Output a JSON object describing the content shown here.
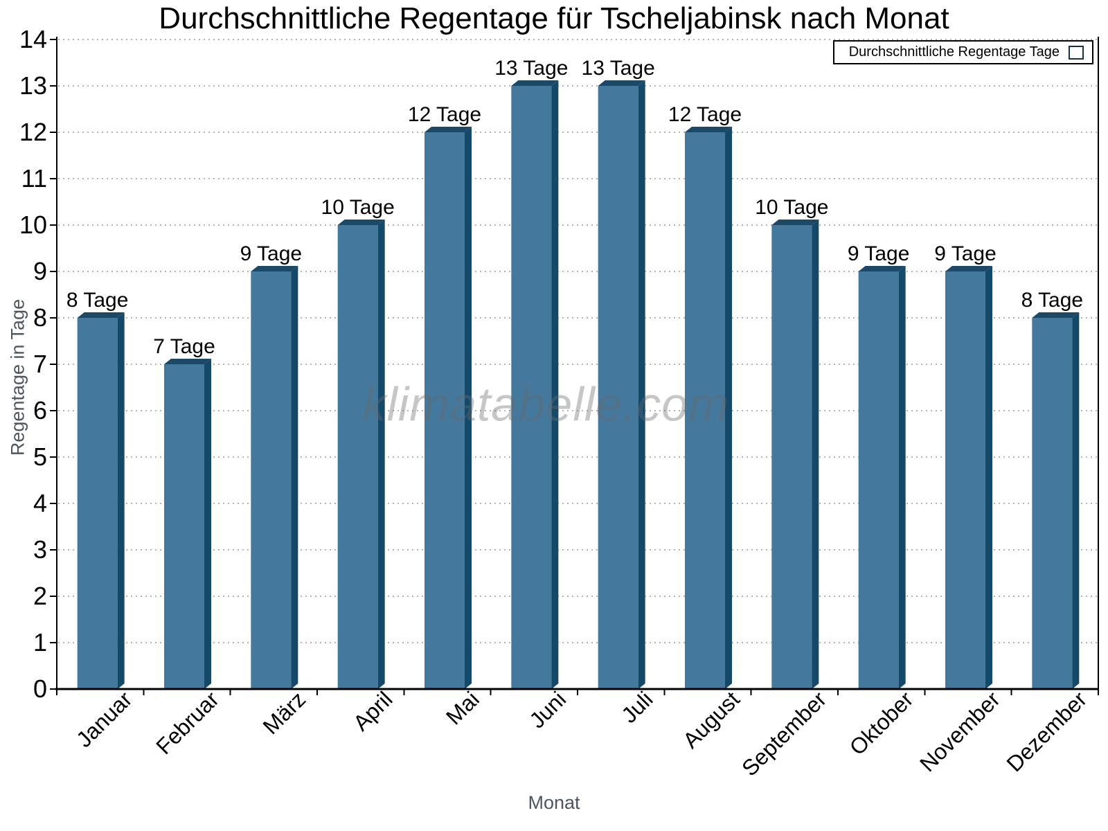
{
  "chart_data": {
    "type": "bar",
    "title": "Durchschnittliche Regentage für Tscheljabinsk nach Monat",
    "categories": [
      "Januar",
      "Februar",
      "März",
      "April",
      "Mai",
      "Juni",
      "Juli",
      "August",
      "September",
      "Oktober",
      "November",
      "Dezember"
    ],
    "values": [
      8,
      7,
      9,
      10,
      12,
      13,
      13,
      12,
      10,
      9,
      9,
      8
    ],
    "bar_labels": [
      "8 Tage",
      "7 Tage",
      "9 Tage",
      "10 Tage",
      "12 Tage",
      "13 Tage",
      "13 Tage",
      "12 Tage",
      "10 Tage",
      "9 Tage",
      "9 Tage",
      "8 Tage"
    ],
    "xlabel": "Monat",
    "ylabel": "Regentage in Tage",
    "ylim": [
      0,
      14
    ],
    "yticks": [
      "0",
      "1",
      "2",
      "3",
      "4",
      "5",
      "6",
      "7",
      "8",
      "9",
      "10",
      "11",
      "12",
      "13",
      "14"
    ],
    "grid": "horizontal-dotted",
    "legend": {
      "label": "Durchschnittliche Regentage Tage",
      "position": "top-right"
    },
    "watermark": "klimatabelle.com",
    "colors": {
      "bar_front": "#44789D",
      "bar_top": "#1C4968",
      "bar_side": "#154969",
      "grid": "#B3B3B3",
      "axis": "#000000",
      "tick_label": "#000000",
      "value_label": "#000000",
      "axis_title": "#4D555D",
      "watermark": "rgba(105,105,105,0.38)",
      "legend_border": "#000000",
      "legend_background": "#FFFFFF"
    }
  }
}
